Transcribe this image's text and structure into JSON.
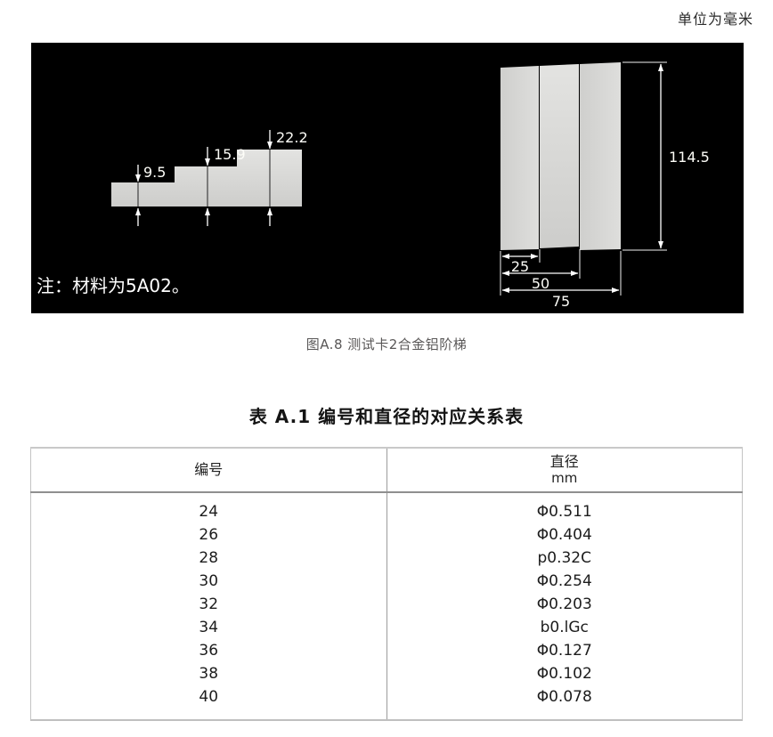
{
  "page": {
    "unit_label": "单位为毫米"
  },
  "figure": {
    "note": "注：材料为5A02。",
    "caption": "图A.8  测试卡2合金铝阶梯",
    "side_view": {
      "step_heights": [
        "9.5",
        "15.9",
        "22.2"
      ]
    },
    "front_view": {
      "total_height": "114.5",
      "step_widths": [
        "25",
        "50",
        "75"
      ]
    }
  },
  "table": {
    "title": "表 A.1  编号和直径的对应关系表",
    "headers": {
      "number": "编号",
      "diameter": "直径",
      "diameter_unit": "mm"
    },
    "rows": [
      {
        "number": "24",
        "diameter": "Φ0.511"
      },
      {
        "number": "26",
        "diameter": "Φ0.404"
      },
      {
        "number": "28",
        "diameter": "p0.32C"
      },
      {
        "number": "30",
        "diameter": "Φ0.254"
      },
      {
        "number": "32",
        "diameter": "Φ0.203"
      },
      {
        "number": "34",
        "diameter": "b0.lGc"
      },
      {
        "number": "36",
        "diameter": "Φ0.127"
      },
      {
        "number": "38",
        "diameter": "Φ0.102"
      },
      {
        "number": "40",
        "diameter": "Φ0.078"
      }
    ]
  },
  "colors": {
    "figure_background": "#000000",
    "metal_gray": "#d6d6d6",
    "dimension_annotation": "#ffffff",
    "caption_text": "#595757"
  }
}
